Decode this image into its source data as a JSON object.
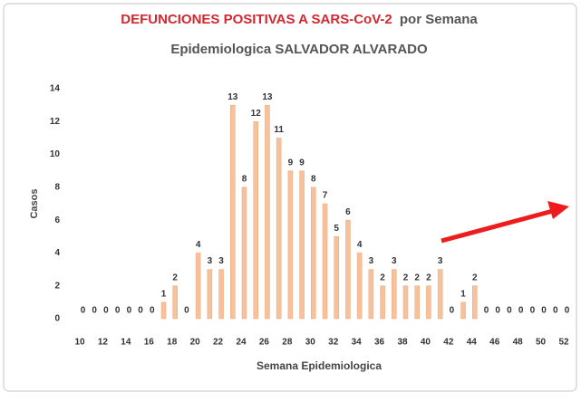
{
  "chart_data": {
    "type": "bar",
    "title_highlight": "DEFUNCIONES POSITIVAS A SARS-CoV-2",
    "title_rest": "por Semana",
    "title_line2": "Epidemiologica SALVADOR ALVARADO",
    "y_label": "Casos",
    "x_label": "Semana Epidemiologica",
    "x": [
      10,
      11,
      12,
      13,
      14,
      15,
      16,
      17,
      18,
      19,
      20,
      21,
      22,
      23,
      24,
      25,
      26,
      27,
      28,
      29,
      30,
      31,
      32,
      33,
      34,
      35,
      36,
      37,
      38,
      39,
      40,
      41,
      42,
      43,
      44,
      45,
      46,
      47,
      48,
      49,
      50,
      51,
      52
    ],
    "values": [
      0,
      0,
      0,
      0,
      0,
      0,
      0,
      1,
      2,
      0,
      4,
      3,
      3,
      13,
      8,
      12,
      13,
      11,
      9,
      9,
      8,
      7,
      5,
      6,
      4,
      3,
      2,
      3,
      2,
      2,
      2,
      3,
      0,
      1,
      2,
      0,
      0,
      0,
      0,
      0,
      0,
      0,
      0
    ],
    "color": "#f7c19b",
    "xlim": [
      10,
      52
    ],
    "xticks": [
      10,
      12,
      14,
      16,
      18,
      20,
      22,
      24,
      26,
      28,
      30,
      32,
      34,
      36,
      38,
      40,
      42,
      44,
      46,
      48,
      50,
      52
    ],
    "ylim": [
      0,
      14
    ],
    "yticks": [
      0,
      2,
      4,
      6,
      8,
      10,
      12,
      14
    ],
    "grid": false
  }
}
